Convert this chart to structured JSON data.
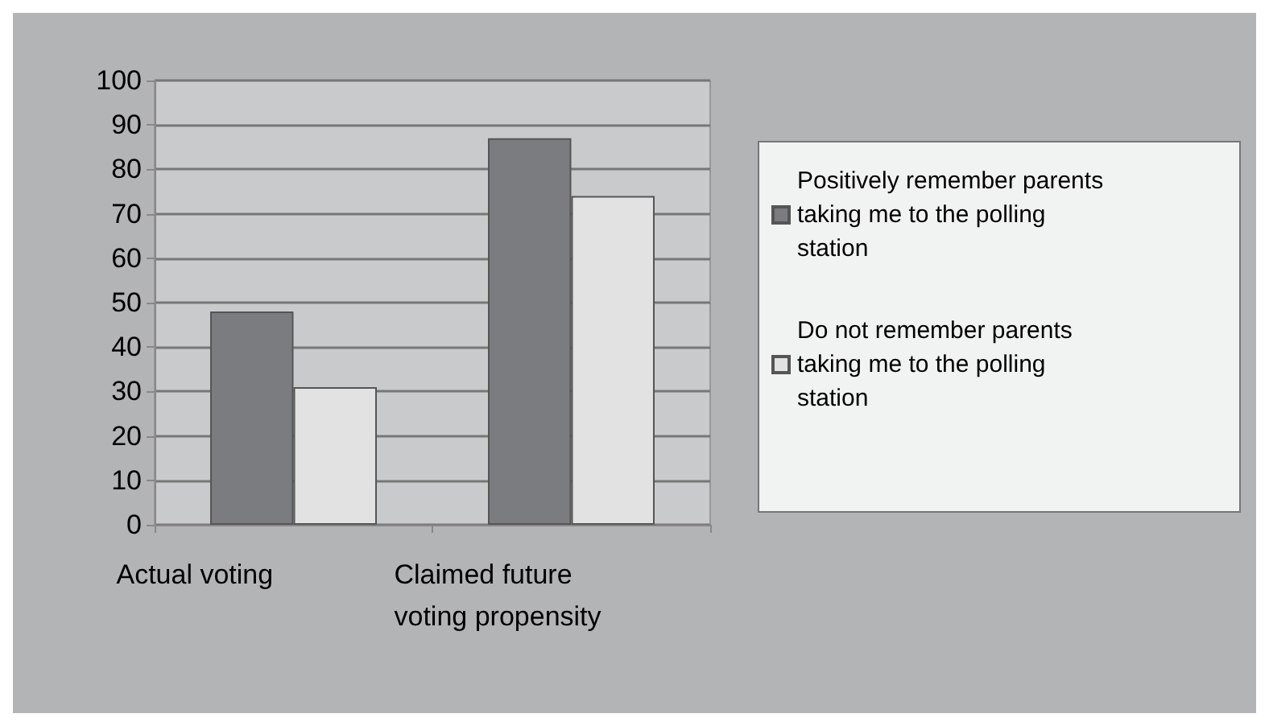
{
  "chart_data": {
    "type": "bar",
    "categories": [
      "Actual voting",
      "Claimed future voting propensity"
    ],
    "series": [
      {
        "name": "Positively remember parents taking me to the polling station",
        "color": "#7b7c80",
        "values": [
          48,
          87
        ]
      },
      {
        "name": "Do not remember parents taking me to the polling station",
        "color": "#e2e2e2",
        "values": [
          31,
          74
        ]
      }
    ],
    "ylim": [
      0,
      100
    ],
    "yticks": [
      0,
      10,
      20,
      30,
      40,
      50,
      60,
      70,
      80,
      90,
      100
    ],
    "grid": "y",
    "legend": "right"
  }
}
